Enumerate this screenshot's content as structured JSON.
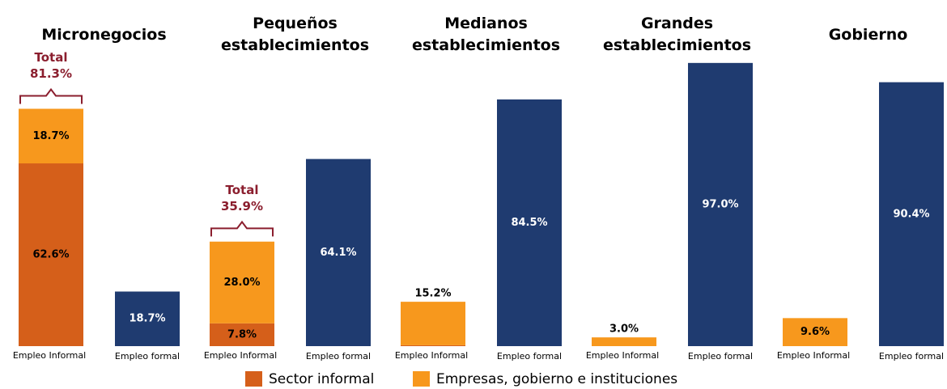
{
  "chart_data": {
    "type": "grouped_stacked_bar",
    "series": [
      {
        "name": "Sector informal",
        "color": "#d55f1a"
      },
      {
        "name": "Empresas, gobierno e instituciones",
        "color": "#f7981d"
      }
    ],
    "formal_color": "#1f3b70",
    "informal_label": "Empleo Informal",
    "formal_label": "Empleo formal",
    "groups": [
      {
        "title": "Micronegocios",
        "values": [
          62.6,
          18.7
        ],
        "value_labels": [
          "62.6%",
          "18.7%"
        ],
        "formal": 18.7,
        "formal_value_label": "18.7%",
        "total": {
          "text": "Total",
          "value": 81.3,
          "label": "81.3%"
        }
      },
      {
        "title": "Pequeños establecimientos",
        "values": [
          7.8,
          28.0
        ],
        "value_labels": [
          "7.8%",
          "28.0%"
        ],
        "formal": 64.1,
        "formal_value_label": "64.1%",
        "total": {
          "text": "Total",
          "value": 35.9,
          "label": "35.9%"
        }
      },
      {
        "title": "Medianos establecimientos",
        "values": [
          0.3,
          14.9
        ],
        "value_labels": [
          "0.3%",
          null
        ],
        "formal": 84.5,
        "formal_value_label": "84.5%",
        "total": {
          "value": 15.2,
          "label": "15.2%"
        }
      },
      {
        "title": "Grandes establecimientos",
        "values": [
          null,
          3.0
        ],
        "value_labels": [
          null,
          "3.0%"
        ],
        "formal": 97.0,
        "formal_value_label": "97.0%"
      },
      {
        "title": "Gobierno",
        "values": [
          null,
          9.6
        ],
        "value_labels": [
          null,
          "9.6%"
        ],
        "formal": 90.4,
        "formal_value_label": "90.4%"
      }
    ]
  }
}
